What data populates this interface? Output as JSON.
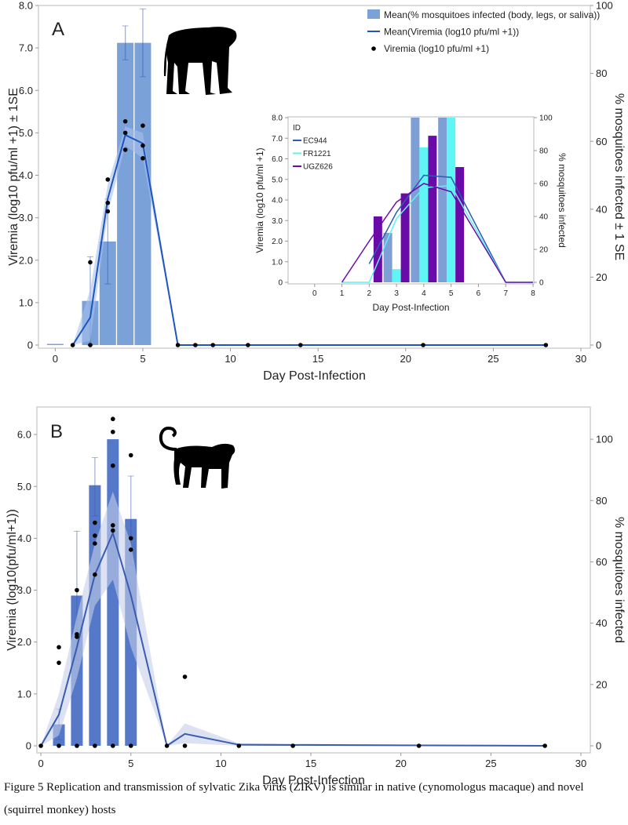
{
  "chart_data": [
    {
      "panel": "A",
      "type": "bar+line+scatter",
      "xlabel": "Day Post-Infection",
      "ylabel": "Viremia (log10 pfu/ml +1) ± 1SE",
      "y2label": "% mosquitoes infected ± 1 SE",
      "xlim": [
        -1,
        30
      ],
      "ylim": [
        0,
        8
      ],
      "y2lim": [
        0,
        100
      ],
      "xticks": [
        "0",
        "5",
        "10",
        "15",
        "20",
        "25",
        "30"
      ],
      "yticks": [
        "0",
        "1.0",
        "2.0",
        "3.0",
        "4.0",
        "5.0",
        "6.0",
        "7.0",
        "8.0"
      ],
      "y2ticks": [
        "0",
        "20",
        "40",
        "60",
        "80",
        "100"
      ],
      "legend": [
        "Mean(% mosquitoes infected (body, legs, or saliva))",
        "Mean(Viremia (log10 pfu/ml +1))",
        "Viremia (log10 pfu/ml +1)"
      ],
      "bars": {
        "x": [
          0,
          2,
          3,
          4,
          5
        ],
        "values": [
          0,
          13,
          30.5,
          89,
          89
        ],
        "err_low": [
          null,
          0,
          18,
          84,
          79
        ],
        "err_high": [
          null,
          26,
          43,
          94,
          99
        ]
      },
      "mean_line": {
        "x": [
          1,
          2,
          3,
          4,
          5,
          7,
          28
        ],
        "y": [
          0,
          0.65,
          3.45,
          4.95,
          4.75,
          0,
          0
        ],
        "band_low": [
          0,
          0.1,
          3.1,
          4.7,
          4.4,
          0,
          0
        ],
        "band_high": [
          0,
          1.3,
          3.8,
          5.15,
          5.0,
          0,
          0
        ]
      },
      "points": {
        "x": [
          1,
          2,
          2,
          3,
          3,
          3,
          4,
          4,
          4,
          5,
          5,
          5,
          7,
          8,
          9,
          11,
          14,
          21,
          28
        ],
        "y": [
          0,
          1.95,
          0,
          3.9,
          3.35,
          3.15,
          5.27,
          5.0,
          4.6,
          5.17,
          4.7,
          4.4,
          0,
          0,
          0,
          0,
          0,
          0,
          0
        ]
      },
      "colors": {
        "bar": "#7ba1d9",
        "line": "#1f55c0",
        "band": "#a9c1ea",
        "point": "#000000"
      }
    },
    {
      "panel": "A-inset",
      "type": "bar+line",
      "xlabel": "Day Post-Infection",
      "ylabel": "Viremia (log10 pfu/ml +1)",
      "y2label": "% mosquitoes infected",
      "legend_title": "ID",
      "xlim": [
        -1,
        8
      ],
      "ylim": [
        0,
        8
      ],
      "y2lim": [
        0,
        100
      ],
      "xticks": [
        "0",
        "1",
        "2",
        "3",
        "4",
        "5",
        "6",
        "7",
        "8"
      ],
      "yticks": [
        "0",
        "1.0",
        "2.0",
        "3.0",
        "4.0",
        "5.0",
        "6.0",
        "7.0",
        "8.0"
      ],
      "y2ticks": [
        "0",
        "20",
        "40",
        "60",
        "80",
        "100"
      ],
      "series": [
        {
          "name": "EC944",
          "bar_color": "#7e9fd6",
          "line_color": "#2a5cb8",
          "bars": {
            "x": [
              3,
              4,
              5
            ],
            "values": [
              30,
              100,
              100
            ]
          },
          "line": {
            "x": [
              2,
              3,
              4,
              5,
              7
            ],
            "y": [
              0.9,
              3.4,
              5.2,
              5.1,
              0
            ]
          }
        },
        {
          "name": "FR1221",
          "bar_color": "#5ff5f5",
          "line_color": "#5ff0f0",
          "bars": {
            "x": [
              3,
              4,
              5
            ],
            "values": [
              8,
              82,
              100
            ]
          },
          "line": {
            "x": [
              1,
              2,
              3,
              4,
              5,
              7,
              8
            ],
            "y": [
              0,
              0,
              3.1,
              4.6,
              4.7,
              0,
              0
            ]
          }
        },
        {
          "name": "UGZ626",
          "bar_color": "#6a0aa8",
          "line_color": "#6a0aa8",
          "bars": {
            "x": [
              2,
              3,
              4,
              5
            ],
            "values": [
              40,
              54,
              89,
              70
            ]
          },
          "line": {
            "x": [
              1,
              2,
              3,
              4,
              5,
              7,
              8
            ],
            "y": [
              0,
              2.0,
              3.9,
              4.8,
              4.4,
              0,
              0
            ]
          }
        }
      ]
    },
    {
      "panel": "B",
      "type": "bar+line+scatter",
      "xlabel": "Day Post-Infection",
      "ylabel": "Viremia (log10(pfu/ml+1))",
      "y2label": "% mosquitoes infected",
      "xlim": [
        -0.2,
        30
      ],
      "ylim": [
        0,
        6.5
      ],
      "y2lim": [
        0,
        110
      ],
      "xticks": [
        "0",
        "5",
        "10",
        "15",
        "20",
        "25",
        "30"
      ],
      "yticks": [
        "0",
        "1.0",
        "2.0",
        "3.0",
        "4.0",
        "5.0",
        "6.0"
      ],
      "y2ticks": [
        "0",
        "20",
        "40",
        "60",
        "80",
        "100"
      ],
      "bars": {
        "x": [
          1,
          2,
          3,
          4,
          5
        ],
        "values": [
          7,
          49,
          85,
          100,
          74
        ],
        "err_low": [
          2,
          28,
          75,
          null,
          59
        ],
        "err_high": [
          12,
          70,
          94,
          null,
          88
        ]
      },
      "mean_line": {
        "x": [
          0,
          1,
          2,
          3,
          4,
          5,
          7,
          8,
          11,
          28
        ],
        "y": [
          0,
          0.6,
          1.9,
          3.3,
          4.1,
          2.9,
          0,
          0.23,
          0.02,
          0
        ],
        "band_low": [
          0,
          0.2,
          1.3,
          2.7,
          3.2,
          1.9,
          0,
          0.05,
          0,
          0
        ],
        "band_high": [
          0,
          1.0,
          2.5,
          3.9,
          4.9,
          3.9,
          0,
          0.43,
          0.05,
          0
        ]
      },
      "points": {
        "x": [
          0,
          1,
          1,
          1,
          2,
          2,
          2,
          2,
          3,
          3,
          3,
          3,
          3,
          4,
          4,
          4,
          4,
          4,
          4,
          5,
          5,
          5,
          5,
          7,
          8,
          8,
          11,
          14,
          21,
          28
        ],
        "y": [
          0,
          1.9,
          1.6,
          0,
          3.0,
          2.15,
          2.1,
          0,
          4.3,
          4.05,
          3.9,
          3.3,
          0,
          6.3,
          6.05,
          5.4,
          4.25,
          4.15,
          0,
          5.6,
          4.0,
          3.78,
          0,
          0,
          1.33,
          0,
          0,
          0,
          0,
          0
        ]
      },
      "colors": {
        "bar": "#5578c8",
        "line": "#3a5bb0",
        "band": "#c5cfe8",
        "point": "#000000"
      }
    }
  ],
  "labels": {
    "panel_a": "A",
    "panel_b": "B"
  },
  "icons": {
    "panel_a": "macaque-silhouette-icon",
    "panel_b": "squirrel-monkey-silhouette-icon"
  },
  "caption": "Figure 5 Replication and transmission of sylvatic Zika virus (ZIKV) is similar in native (cynomologus macaque) and novel (squirrel monkey) hosts"
}
